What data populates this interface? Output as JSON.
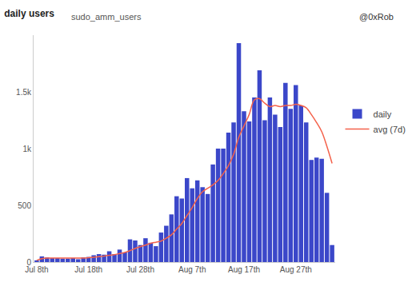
{
  "chart_data": {
    "type": "bar",
    "title": "daily users",
    "subtitle": "sudo_amm_users",
    "annotations": [
      "@0xRob"
    ],
    "categories": [
      "Jul 8th",
      null,
      null,
      null,
      null,
      null,
      null,
      null,
      null,
      null,
      "Jul 18th",
      null,
      null,
      null,
      null,
      null,
      null,
      null,
      null,
      null,
      "Jul 28th",
      null,
      null,
      null,
      null,
      null,
      null,
      null,
      null,
      null,
      "Aug 7th",
      null,
      null,
      null,
      null,
      null,
      null,
      null,
      null,
      null,
      "Aug 17th",
      null,
      null,
      null,
      null,
      null,
      null,
      null,
      null,
      null,
      "Aug 27th",
      null,
      null,
      null,
      null,
      null,
      null,
      null
    ],
    "series": [
      {
        "name": "daily",
        "type": "bar",
        "color": "#3b47c9",
        "values": [
          15,
          50,
          40,
          35,
          35,
          30,
          30,
          35,
          25,
          40,
          45,
          60,
          70,
          65,
          95,
          70,
          110,
          85,
          200,
          190,
          150,
          210,
          170,
          140,
          260,
          320,
          420,
          580,
          560,
          740,
          650,
          720,
          660,
          600,
          860,
          1000,
          1000,
          1140,
          1230,
          1930,
          1330,
          1240,
          1450,
          1690,
          1250,
          1450,
          1300,
          1190,
          1580,
          1350,
          1560,
          1380,
          1230,
          900,
          920,
          910,
          610,
          150
        ]
      },
      {
        "name": "avg (7d)",
        "type": "line",
        "color": "#f4624b",
        "values": [
          15,
          30,
          35,
          35,
          35,
          35,
          35,
          35,
          35,
          35,
          38,
          42,
          47,
          52,
          60,
          65,
          75,
          85,
          100,
          120,
          135,
          150,
          165,
          175,
          185,
          210,
          240,
          290,
          340,
          410,
          480,
          560,
          620,
          650,
          680,
          720,
          780,
          850,
          950,
          1100,
          1200,
          1300,
          1430,
          1440,
          1400,
          1370,
          1380,
          1370,
          1380,
          1380,
          1390,
          1380,
          1360,
          1300,
          1230,
          1150,
          1020,
          870
        ]
      }
    ],
    "ylim": [
      0,
      2000
    ],
    "yticks": [
      0,
      500,
      {
        "value": 1000,
        "label": "1k"
      },
      {
        "value": 1500,
        "label": "1.5k"
      }
    ],
    "grid": false,
    "legend": "right"
  }
}
